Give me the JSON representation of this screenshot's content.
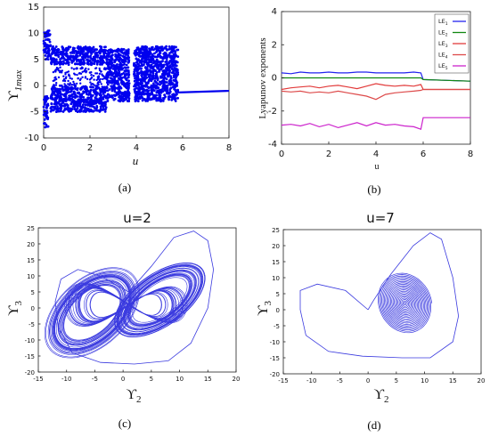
{
  "colors": {
    "blue": "#0000ee",
    "line_blue": "#3a3adf",
    "le1": "#2222ee",
    "le2": "#118811",
    "le3": "#e23b3b",
    "le4": "#dd4a4a",
    "le5": "#cc22cc"
  },
  "chart_data": [
    {
      "id": "a",
      "type": "scatter",
      "caption": "(a)",
      "xlabel": "u",
      "ylabel": "ϒ",
      "ylabel_sub": "1max",
      "xlim": [
        0,
        8
      ],
      "ylim": [
        -10,
        15
      ],
      "xticks": [
        "0",
        "2",
        "4",
        "6",
        "8"
      ],
      "yticks": [
        "15",
        "10",
        "5",
        "0",
        "-5",
        "-10"
      ],
      "description_points": {
        "bands": [
          {
            "u": [
              0,
              0.3
            ],
            "y": [
              5,
              10.5
            ]
          },
          {
            "u": [
              0,
              0.2
            ],
            "y": [
              -8,
              -2
            ]
          },
          {
            "u": [
              0.3,
              2.7
            ],
            "y": [
              4,
              7.5
            ]
          },
          {
            "u": [
              0.3,
              2.7
            ],
            "y": [
              -5,
              0
            ]
          },
          {
            "u": [
              2.7,
              3.7
            ],
            "y": [
              -3,
              7
            ]
          },
          {
            "u": [
              3.9,
              5.8
            ],
            "y": [
              -3,
              7.5
            ]
          }
        ],
        "line": {
          "x": [
            5.8,
            8
          ],
          "y": [
            -1.3,
            -1.0
          ]
        }
      },
      "grid": false
    },
    {
      "id": "b",
      "type": "line",
      "caption": "(b)",
      "xlabel": "u",
      "ylabel": "Lyapunov exponents",
      "xlim": [
        0,
        8
      ],
      "ylim": [
        -4,
        4
      ],
      "xticks": [
        "0",
        "2",
        "4",
        "6",
        "8"
      ],
      "yticks": [
        "4",
        "2",
        "0",
        "-2",
        "-4"
      ],
      "x": [
        0,
        0.4,
        0.8,
        1.2,
        1.6,
        2.0,
        2.4,
        2.8,
        3.2,
        3.6,
        4.0,
        4.4,
        4.8,
        5.2,
        5.6,
        5.9,
        6.0,
        8.0
      ],
      "legend": {
        "position": "top-right",
        "entries": [
          "LE",
          "LE",
          "LE",
          "LE",
          "LE"
        ],
        "subs": [
          "1",
          "2",
          "3",
          "4",
          "5"
        ]
      },
      "series": [
        {
          "values": [
            0.3,
            0.25,
            0.35,
            0.3,
            0.3,
            0.35,
            0.3,
            0.3,
            0.35,
            0.35,
            0.3,
            0.3,
            0.3,
            0.3,
            0.35,
            0.3,
            -0.1,
            -0.2
          ]
        },
        {
          "values": [
            0.0,
            0.0,
            0.0,
            0.0,
            0.0,
            0.0,
            0.0,
            0.0,
            0.0,
            0.0,
            0.0,
            0.0,
            0.0,
            0.0,
            0.0,
            0.0,
            -0.1,
            -0.2
          ]
        },
        {
          "values": [
            -0.7,
            -0.6,
            -0.55,
            -0.5,
            -0.6,
            -0.5,
            -0.45,
            -0.55,
            -0.65,
            -0.5,
            -0.35,
            -0.45,
            -0.5,
            -0.45,
            -0.5,
            -0.4,
            -0.7,
            -0.7
          ]
        },
        {
          "values": [
            -0.8,
            -0.85,
            -0.8,
            -0.9,
            -0.85,
            -0.9,
            -0.8,
            -0.9,
            -1.0,
            -1.1,
            -1.3,
            -1.0,
            -0.9,
            -0.85,
            -0.8,
            -0.75,
            -0.7,
            -0.7
          ]
        },
        {
          "values": [
            -2.85,
            -2.8,
            -2.9,
            -2.75,
            -2.95,
            -2.8,
            -3.0,
            -2.85,
            -2.7,
            -2.9,
            -2.7,
            -2.85,
            -2.8,
            -2.9,
            -2.95,
            -3.1,
            -2.4,
            -2.4
          ]
        }
      ],
      "grid": false
    },
    {
      "id": "c",
      "type": "line",
      "title": "u=2",
      "caption": "(c)",
      "xlabel": "ϒ",
      "xlabel_sub": "2",
      "ylabel": "ϒ",
      "ylabel_sub": "3",
      "xlim": [
        -15,
        20
      ],
      "ylim": [
        -20,
        25
      ],
      "xticks": [
        "-15",
        "-10",
        "-5",
        "0",
        "5",
        "10",
        "15",
        "20"
      ],
      "yticks": [
        "25",
        "20",
        "15",
        "10",
        "5",
        "0",
        "-5",
        "-10",
        "-15",
        "-20"
      ],
      "attractor": "double-scroll",
      "outer_envelope": {
        "x_range": [
          -12,
          16
        ],
        "y_range": [
          -17.5,
          24
        ]
      },
      "grid": false
    },
    {
      "id": "d",
      "type": "line",
      "title": "u=7",
      "caption": "(d)",
      "xlabel": "ϒ",
      "xlabel_sub": "2",
      "ylabel": "ϒ",
      "ylabel_sub": "3",
      "xlim": [
        -15,
        20
      ],
      "ylim": [
        -20,
        25
      ],
      "xticks": [
        "-15",
        "-10",
        "-5",
        "0",
        "5",
        "10",
        "15",
        "20"
      ],
      "yticks": [
        "25",
        "20",
        "15",
        "10",
        "5",
        "0",
        "-5",
        "-10",
        "-15",
        "-20"
      ],
      "attractor": "spiral-to-fixed-point",
      "fixed_point": {
        "x": 6.5,
        "y": 2.0
      },
      "grid": false
    }
  ]
}
